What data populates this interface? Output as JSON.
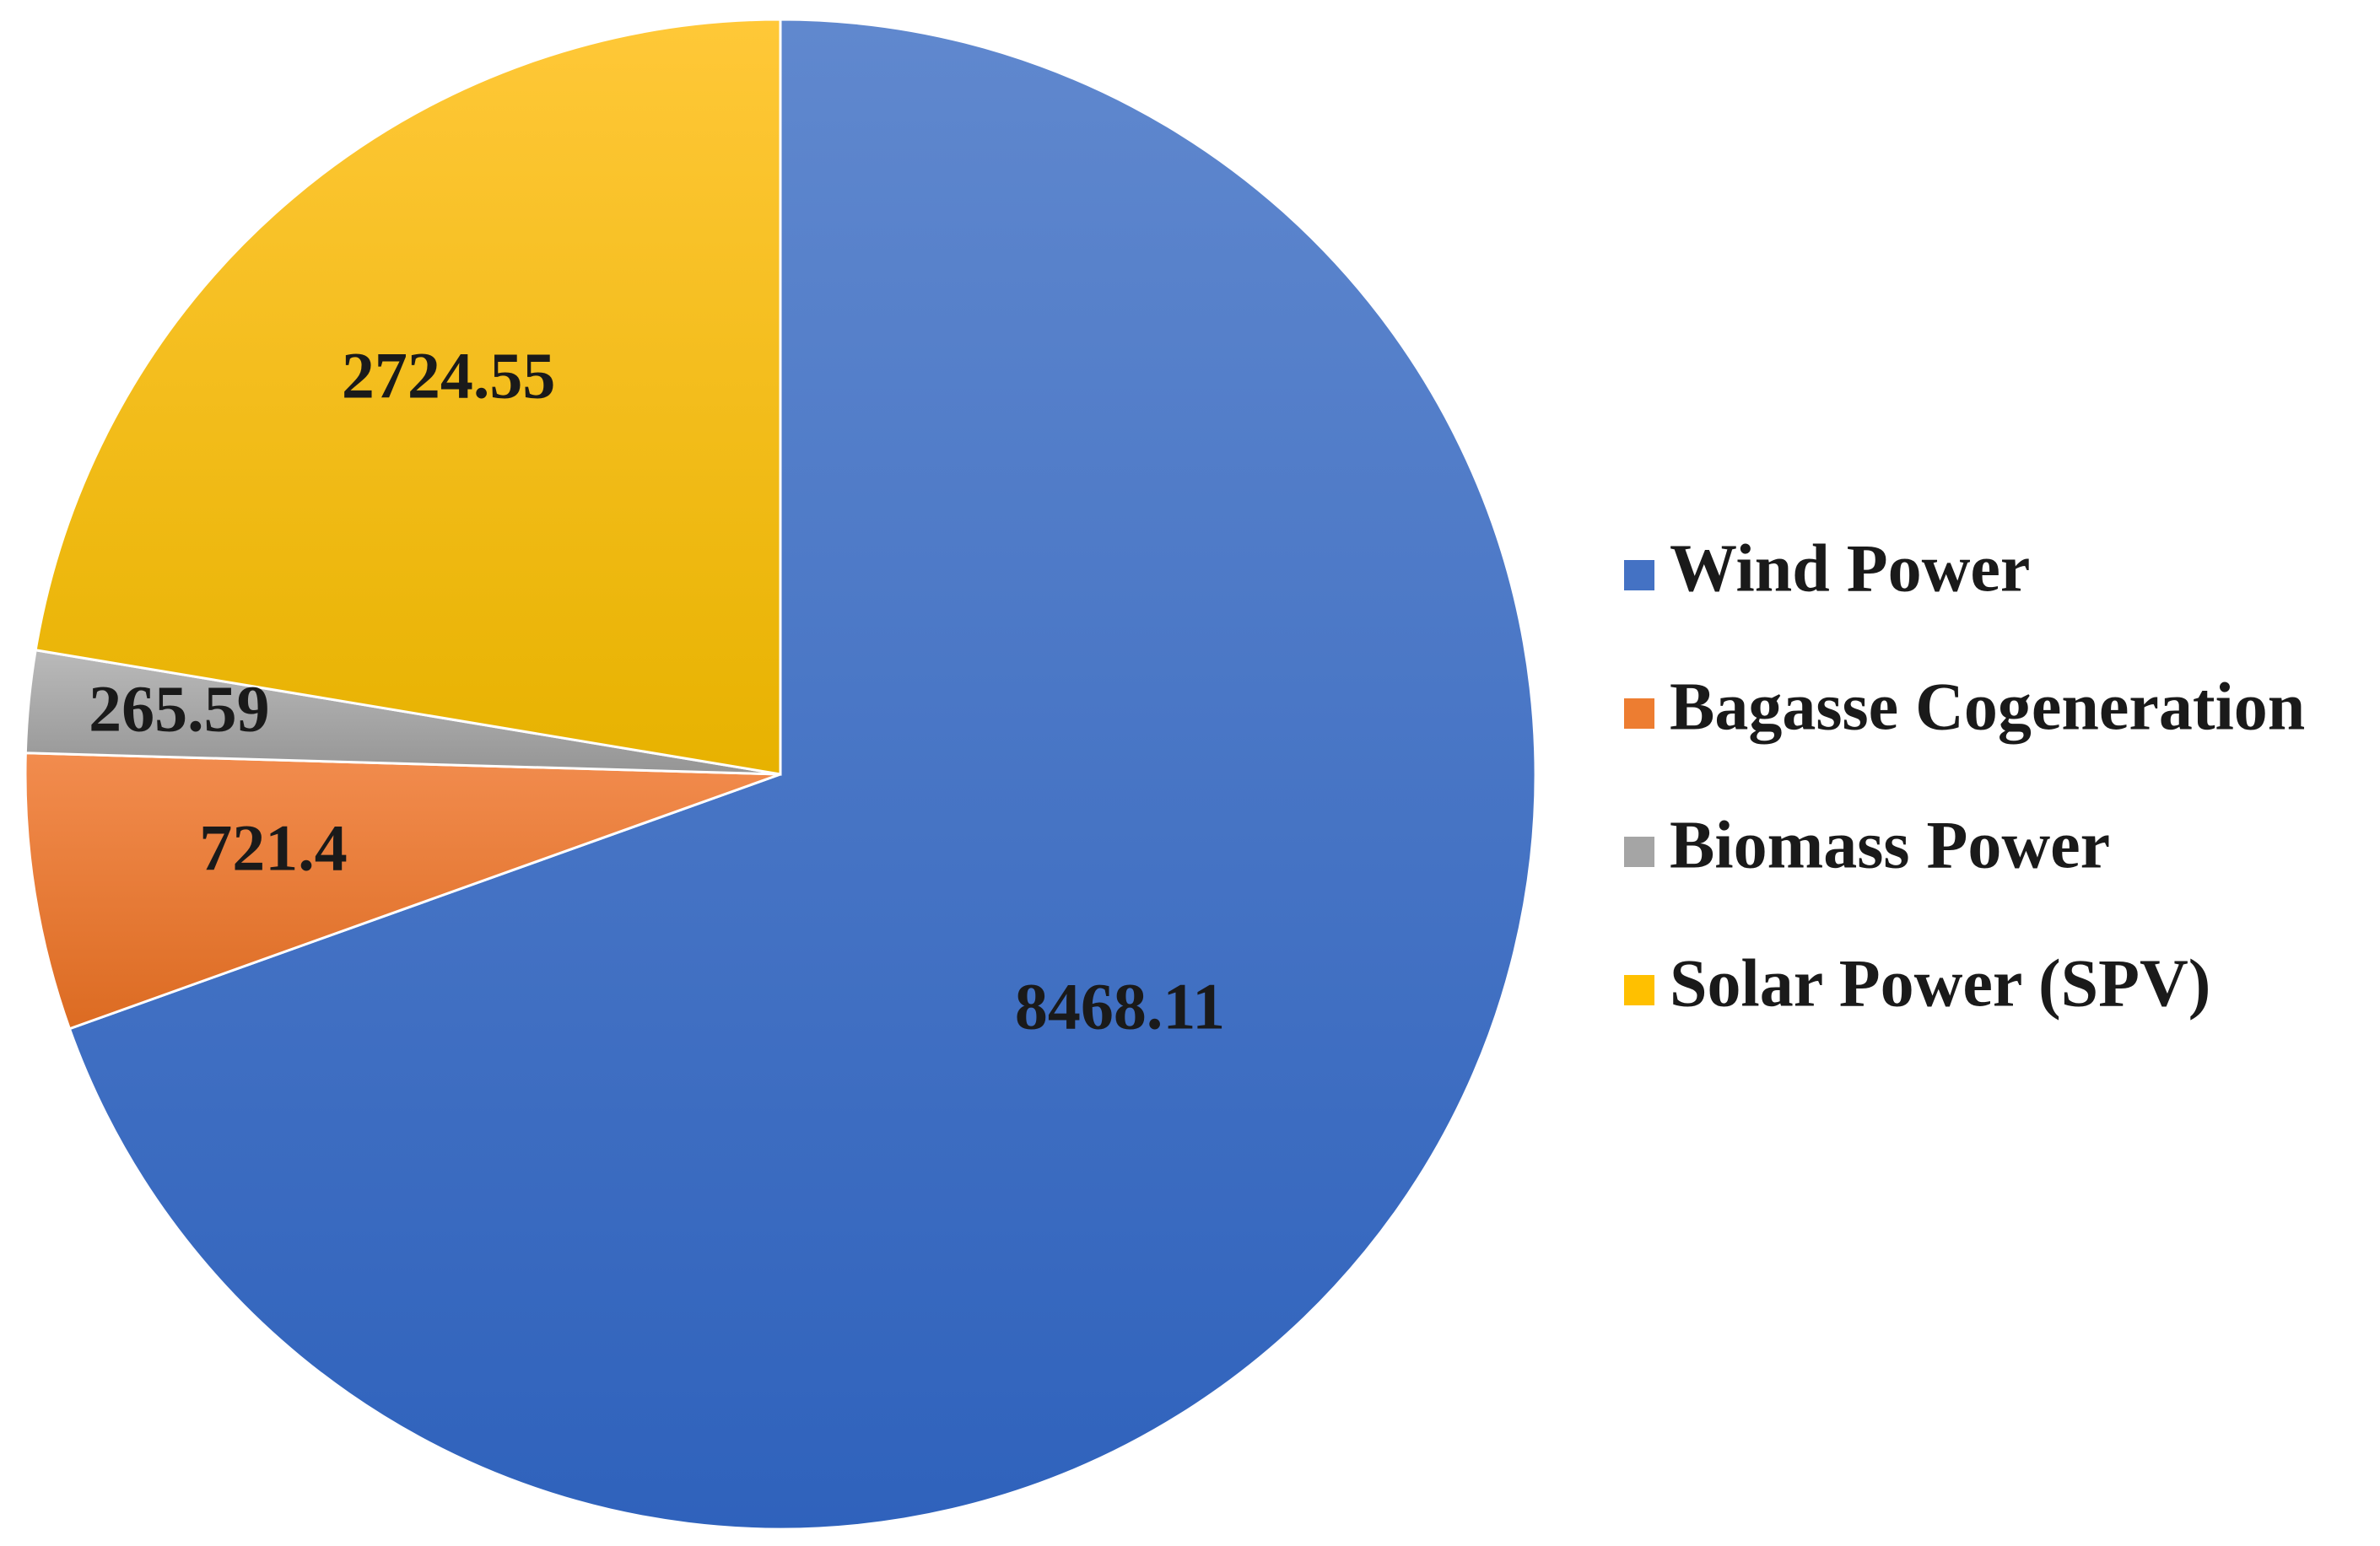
{
  "chart_data": {
    "type": "pie",
    "title": "",
    "slices": [
      {
        "name": "Wind Power",
        "value": 8468.11,
        "label": "8468.11",
        "color": "#4472C4"
      },
      {
        "name": "Bagasse Cogeneration",
        "value": 721.4,
        "label": "721.4",
        "color": "#ED7D31"
      },
      {
        "name": "Biomass Power",
        "value": 265.59,
        "label": "265.59",
        "color": "#A5A5A5"
      },
      {
        "name": "Solar Power (SPV)",
        "value": 2724.55,
        "label": "2724.55",
        "color": "#FFC000"
      }
    ],
    "start_angle_deg": 0,
    "direction": "clockwise",
    "legend": "right"
  }
}
